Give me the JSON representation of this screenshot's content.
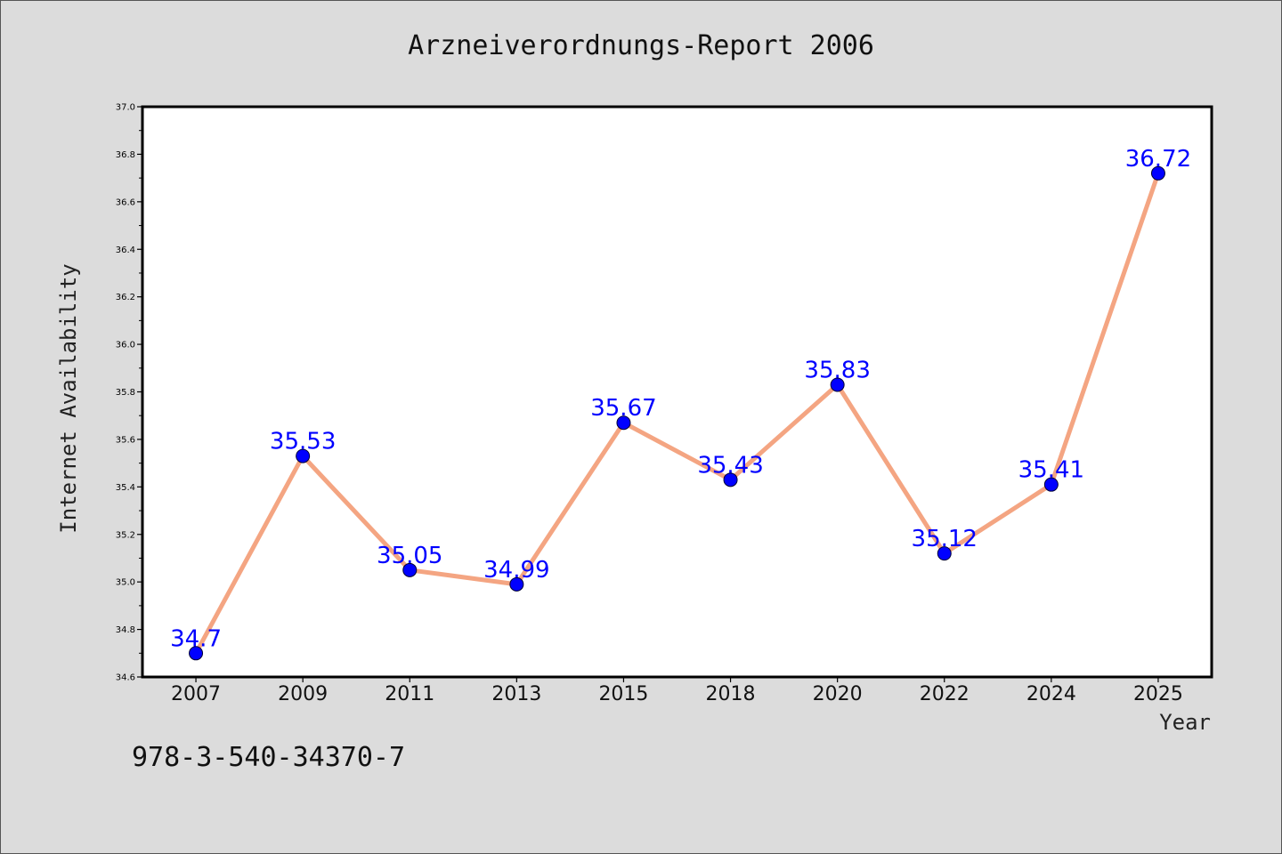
{
  "chart_data": {
    "type": "line",
    "title": "Arzneiverordnungs-Report 2006",
    "xlabel": "Year",
    "ylabel": "Internet Availability",
    "categories": [
      "2007",
      "2009",
      "2011",
      "2013",
      "2015",
      "2018",
      "2020",
      "2022",
      "2024",
      "2025"
    ],
    "series": [
      {
        "values": [
          34.7,
          35.53,
          35.05,
          34.99,
          35.67,
          35.43,
          35.83,
          35.12,
          35.41,
          36.72
        ],
        "data_labels": [
          "34.7",
          "35.53",
          "35.05",
          "34.99",
          "35.67",
          "35.43",
          "35.83",
          "35.12",
          "35.41",
          "36.72"
        ]
      }
    ],
    "ylim": [
      34.6,
      37.0
    ],
    "yticks": [
      "34.6",
      "34.8",
      "35.0",
      "35.2",
      "35.4",
      "35.6",
      "35.8",
      "36.0",
      "36.2",
      "36.4",
      "36.6",
      "36.8",
      "37.0"
    ],
    "grid": false,
    "legend": "none",
    "line_color": "#f4a582",
    "marker_color": "#0000ff",
    "label_color": "#0000ff"
  },
  "footnote": "978-3-540-34370-7"
}
